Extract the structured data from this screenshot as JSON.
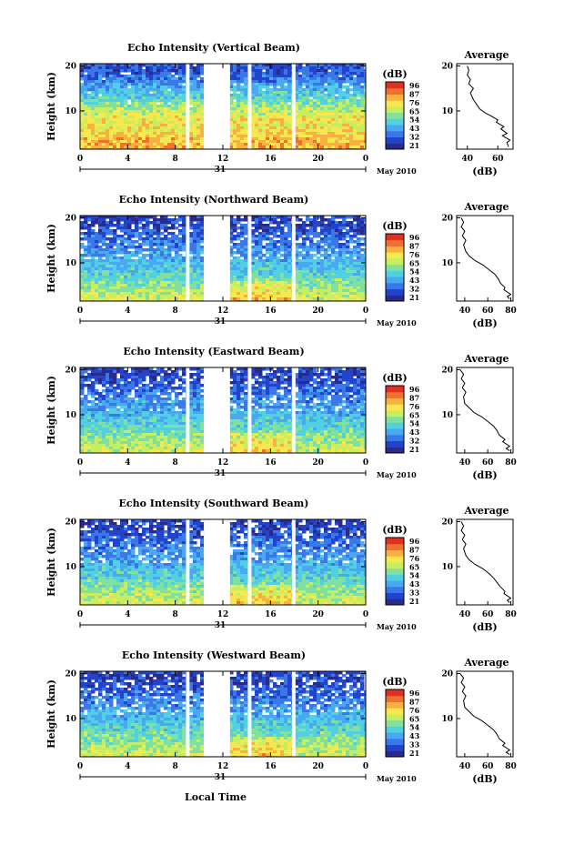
{
  "figure": {
    "bottom_xlabel": "Local Time",
    "date_label": "May 2010",
    "day_label": "31",
    "colorbar_unit": "(dB)",
    "avg_title": "Average",
    "avg_xlabel": "(dB)",
    "ylabel": "Height (km)",
    "colormap": [
      "#2a2a8a",
      "#2244cc",
      "#3a78e8",
      "#48a8f0",
      "#50d0e0",
      "#80e0a0",
      "#c8ee60",
      "#f8e850",
      "#f8b040",
      "#f07030",
      "#e03020"
    ]
  },
  "chart_data": [
    {
      "type": "heatmap",
      "title": "Echo Intensity (Vertical Beam)",
      "x_ticks": [
        "0",
        "4",
        "8",
        "12",
        "16",
        "20",
        "0"
      ],
      "xlim": [
        0,
        24
      ],
      "y_ticks": [
        "10",
        "20"
      ],
      "ylim": [
        1.5,
        20.5
      ],
      "colorbar_ticks": [
        "96",
        "87",
        "76",
        "65",
        "54",
        "43",
        "32",
        "21"
      ],
      "gaps": [
        [
          8.9,
          9.2
        ],
        [
          10.4,
          12.6
        ],
        [
          14.1,
          14.4
        ],
        [
          17.8,
          18.1
        ]
      ],
      "average": {
        "x_ticks": [
          "40",
          "60"
        ],
        "xlim": [
          33,
          70
        ],
        "y_ticks": [
          "10",
          "20"
        ],
        "ylim": [
          1.5,
          20.5
        ],
        "profile": [
          [
            67,
            2
          ],
          [
            66,
            3
          ],
          [
            68,
            3.5
          ],
          [
            63,
            4.5
          ],
          [
            66,
            5
          ],
          [
            62,
            6
          ],
          [
            64,
            6.5
          ],
          [
            59,
            7.5
          ],
          [
            60,
            8
          ],
          [
            55,
            9
          ],
          [
            52,
            9.5
          ],
          [
            48,
            10.5
          ],
          [
            46,
            11.5
          ],
          [
            44,
            12.5
          ],
          [
            42,
            14
          ],
          [
            44,
            15
          ],
          [
            41,
            16
          ],
          [
            42,
            17
          ],
          [
            40,
            18
          ],
          [
            41,
            19
          ],
          [
            40,
            20
          ]
        ]
      }
    },
    {
      "type": "heatmap",
      "title": "Echo Intensity (Northward Beam)",
      "x_ticks": [
        "0",
        "4",
        "8",
        "12",
        "16",
        "20",
        "0"
      ],
      "xlim": [
        0,
        24
      ],
      "y_ticks": [
        "10",
        "20"
      ],
      "ylim": [
        1.5,
        20.5
      ],
      "colorbar_ticks": [
        "96",
        "87",
        "76",
        "65",
        "54",
        "43",
        "32",
        "21"
      ],
      "gaps": [
        [
          8.9,
          9.2
        ],
        [
          10.4,
          12.6
        ],
        [
          14.1,
          14.4
        ],
        [
          17.8,
          18.1
        ]
      ],
      "average": {
        "x_ticks": [
          "40",
          "60",
          "80"
        ],
        "xlim": [
          33,
          82
        ],
        "y_ticks": [
          "10",
          "20"
        ],
        "ylim": [
          1.5,
          20.5
        ],
        "profile": [
          [
            79,
            2
          ],
          [
            77,
            2.5
          ],
          [
            80,
            3
          ],
          [
            74,
            4
          ],
          [
            75,
            4.5
          ],
          [
            71,
            5.5
          ],
          [
            69,
            6.5
          ],
          [
            66,
            7.5
          ],
          [
            61,
            8.5
          ],
          [
            56,
            9.5
          ],
          [
            49,
            10.5
          ],
          [
            44,
            11.5
          ],
          [
            41,
            12.5
          ],
          [
            39,
            14
          ],
          [
            41,
            15
          ],
          [
            38,
            16
          ],
          [
            40,
            17
          ],
          [
            37,
            18
          ],
          [
            39,
            19
          ],
          [
            37,
            20
          ]
        ]
      }
    },
    {
      "type": "heatmap",
      "title": "Echo Intensity (Eastward Beam)",
      "x_ticks": [
        "0",
        "4",
        "8",
        "12",
        "16",
        "20",
        "0"
      ],
      "xlim": [
        0,
        24
      ],
      "y_ticks": [
        "10",
        "20"
      ],
      "ylim": [
        1.5,
        20.5
      ],
      "colorbar_ticks": [
        "96",
        "87",
        "76",
        "65",
        "54",
        "43",
        "32",
        "21"
      ],
      "gaps": [
        [
          8.9,
          9.2
        ],
        [
          10.4,
          12.6
        ],
        [
          14.1,
          14.4
        ],
        [
          17.8,
          18.1
        ]
      ],
      "average": {
        "x_ticks": [
          "40",
          "60",
          "80"
        ],
        "xlim": [
          33,
          82
        ],
        "y_ticks": [
          "10",
          "20"
        ],
        "ylim": [
          1.5,
          20.5
        ],
        "profile": [
          [
            79,
            2
          ],
          [
            76,
            2.5
          ],
          [
            79,
            3
          ],
          [
            73,
            4
          ],
          [
            75,
            4.5
          ],
          [
            70,
            5.5
          ],
          [
            68,
            6.5
          ],
          [
            65,
            7.5
          ],
          [
            60,
            8.5
          ],
          [
            55,
            9.5
          ],
          [
            48,
            10.5
          ],
          [
            44,
            11.5
          ],
          [
            40,
            12.5
          ],
          [
            39,
            14
          ],
          [
            41,
            15
          ],
          [
            38,
            16
          ],
          [
            40,
            17
          ],
          [
            37,
            18
          ],
          [
            39,
            19
          ],
          [
            36,
            20
          ]
        ]
      }
    },
    {
      "type": "heatmap",
      "title": "Echo Intensity (Southward Beam)",
      "x_ticks": [
        "0",
        "4",
        "8",
        "12",
        "16",
        "20",
        "0"
      ],
      "xlim": [
        0,
        24
      ],
      "y_ticks": [
        "10",
        "20"
      ],
      "ylim": [
        1.5,
        20.5
      ],
      "colorbar_ticks": [
        "96",
        "87",
        "76",
        "65",
        "54",
        "43",
        "33",
        "21"
      ],
      "gaps": [
        [
          8.9,
          9.2
        ],
        [
          10.4,
          12.6
        ],
        [
          14.1,
          14.4
        ],
        [
          17.8,
          18.1
        ]
      ],
      "average": {
        "x_ticks": [
          "40",
          "60",
          "80"
        ],
        "xlim": [
          33,
          82
        ],
        "y_ticks": [
          "10",
          "20"
        ],
        "ylim": [
          1.5,
          20.5
        ],
        "profile": [
          [
            79,
            2
          ],
          [
            77,
            2.5
          ],
          [
            80,
            3
          ],
          [
            74,
            4
          ],
          [
            75,
            4.5
          ],
          [
            71,
            5.5
          ],
          [
            68,
            6.5
          ],
          [
            65,
            7.5
          ],
          [
            61,
            8.5
          ],
          [
            56,
            9.5
          ],
          [
            49,
            10.5
          ],
          [
            44,
            11.5
          ],
          [
            41,
            12.5
          ],
          [
            39,
            14
          ],
          [
            41,
            15
          ],
          [
            38,
            16
          ],
          [
            40,
            17
          ],
          [
            37,
            18
          ],
          [
            39,
            19
          ],
          [
            37,
            20
          ]
        ]
      }
    },
    {
      "type": "heatmap",
      "title": "Echo Intensity (Westward Beam)",
      "x_ticks": [
        "0",
        "4",
        "8",
        "12",
        "16",
        "20",
        "0"
      ],
      "xlim": [
        0,
        24
      ],
      "y_ticks": [
        "10",
        "20"
      ],
      "ylim": [
        1.5,
        20.5
      ],
      "colorbar_ticks": [
        "96",
        "87",
        "76",
        "65",
        "54",
        "43",
        "33",
        "21"
      ],
      "gaps": [
        [
          8.9,
          9.2
        ],
        [
          10.4,
          12.6
        ],
        [
          14.1,
          14.4
        ],
        [
          17.8,
          18.1
        ]
      ],
      "average": {
        "x_ticks": [
          "40",
          "60",
          "80"
        ],
        "xlim": [
          33,
          82
        ],
        "y_ticks": [
          "10",
          "20"
        ],
        "ylim": [
          1.5,
          20.5
        ],
        "profile": [
          [
            79,
            2
          ],
          [
            76,
            2.5
          ],
          [
            79,
            3
          ],
          [
            73,
            4
          ],
          [
            75,
            4.5
          ],
          [
            70,
            5.5
          ],
          [
            68,
            6.5
          ],
          [
            65,
            7.5
          ],
          [
            60,
            8.5
          ],
          [
            55,
            9.5
          ],
          [
            48,
            10.5
          ],
          [
            44,
            11.5
          ],
          [
            40,
            12.5
          ],
          [
            39,
            14
          ],
          [
            41,
            15
          ],
          [
            38,
            16
          ],
          [
            40,
            17
          ],
          [
            37,
            18
          ],
          [
            39,
            19
          ],
          [
            36,
            20
          ]
        ]
      }
    }
  ]
}
